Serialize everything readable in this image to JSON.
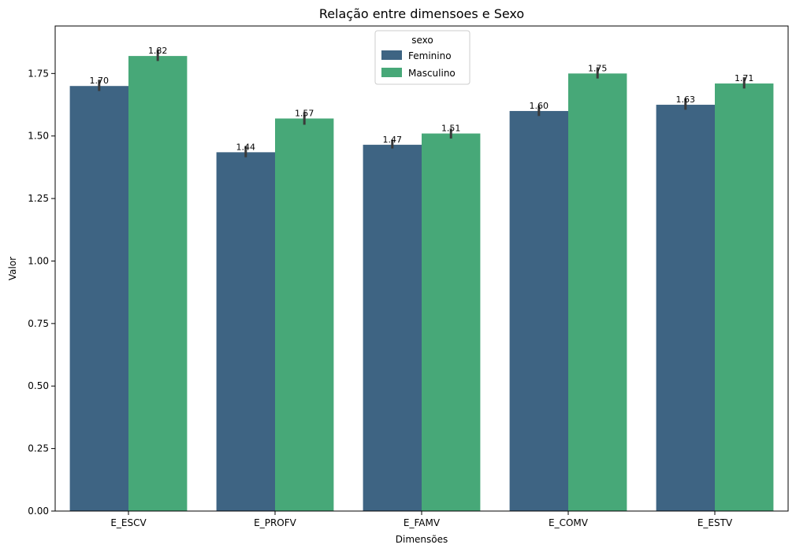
{
  "chart_data": {
    "type": "bar",
    "title": "Relação entre dimensoes e Sexo",
    "xlabel": "Dimensões",
    "ylabel": "Valor",
    "ylim": [
      0,
      1.94
    ],
    "yticks": [
      0.0,
      0.25,
      0.5,
      0.75,
      1.0,
      1.25,
      1.5,
      1.75
    ],
    "ytick_labels": [
      "0.00",
      "0.25",
      "0.50",
      "0.75",
      "1.00",
      "1.25",
      "1.50",
      "1.75"
    ],
    "categories": [
      "E_ESCV",
      "E_PROFV",
      "E_FAMV",
      "E_COMV",
      "E_ESTV"
    ],
    "legend": {
      "title": "sexo",
      "position": "top-center"
    },
    "series": [
      {
        "name": "Feminino",
        "color": "#3e6483",
        "values": [
          1.7,
          1.435,
          1.465,
          1.6,
          1.625
        ],
        "labels": [
          "1.70",
          "1.44",
          "1.47",
          "1.60",
          "1.63"
        ],
        "error": [
          [
            1.68,
            1.725
          ],
          [
            1.415,
            1.46
          ],
          [
            1.45,
            1.485
          ],
          [
            1.58,
            1.62
          ],
          [
            1.605,
            1.65
          ]
        ]
      },
      {
        "name": "Masculino",
        "color": "#47a878",
        "values": [
          1.82,
          1.57,
          1.51,
          1.75,
          1.71
        ],
        "labels": [
          "1.82",
          "1.57",
          "1.51",
          "1.75",
          "1.71"
        ],
        "error": [
          [
            1.8,
            1.845
          ],
          [
            1.545,
            1.595
          ],
          [
            1.49,
            1.53
          ],
          [
            1.73,
            1.775
          ],
          [
            1.69,
            1.735
          ]
        ]
      }
    ]
  }
}
